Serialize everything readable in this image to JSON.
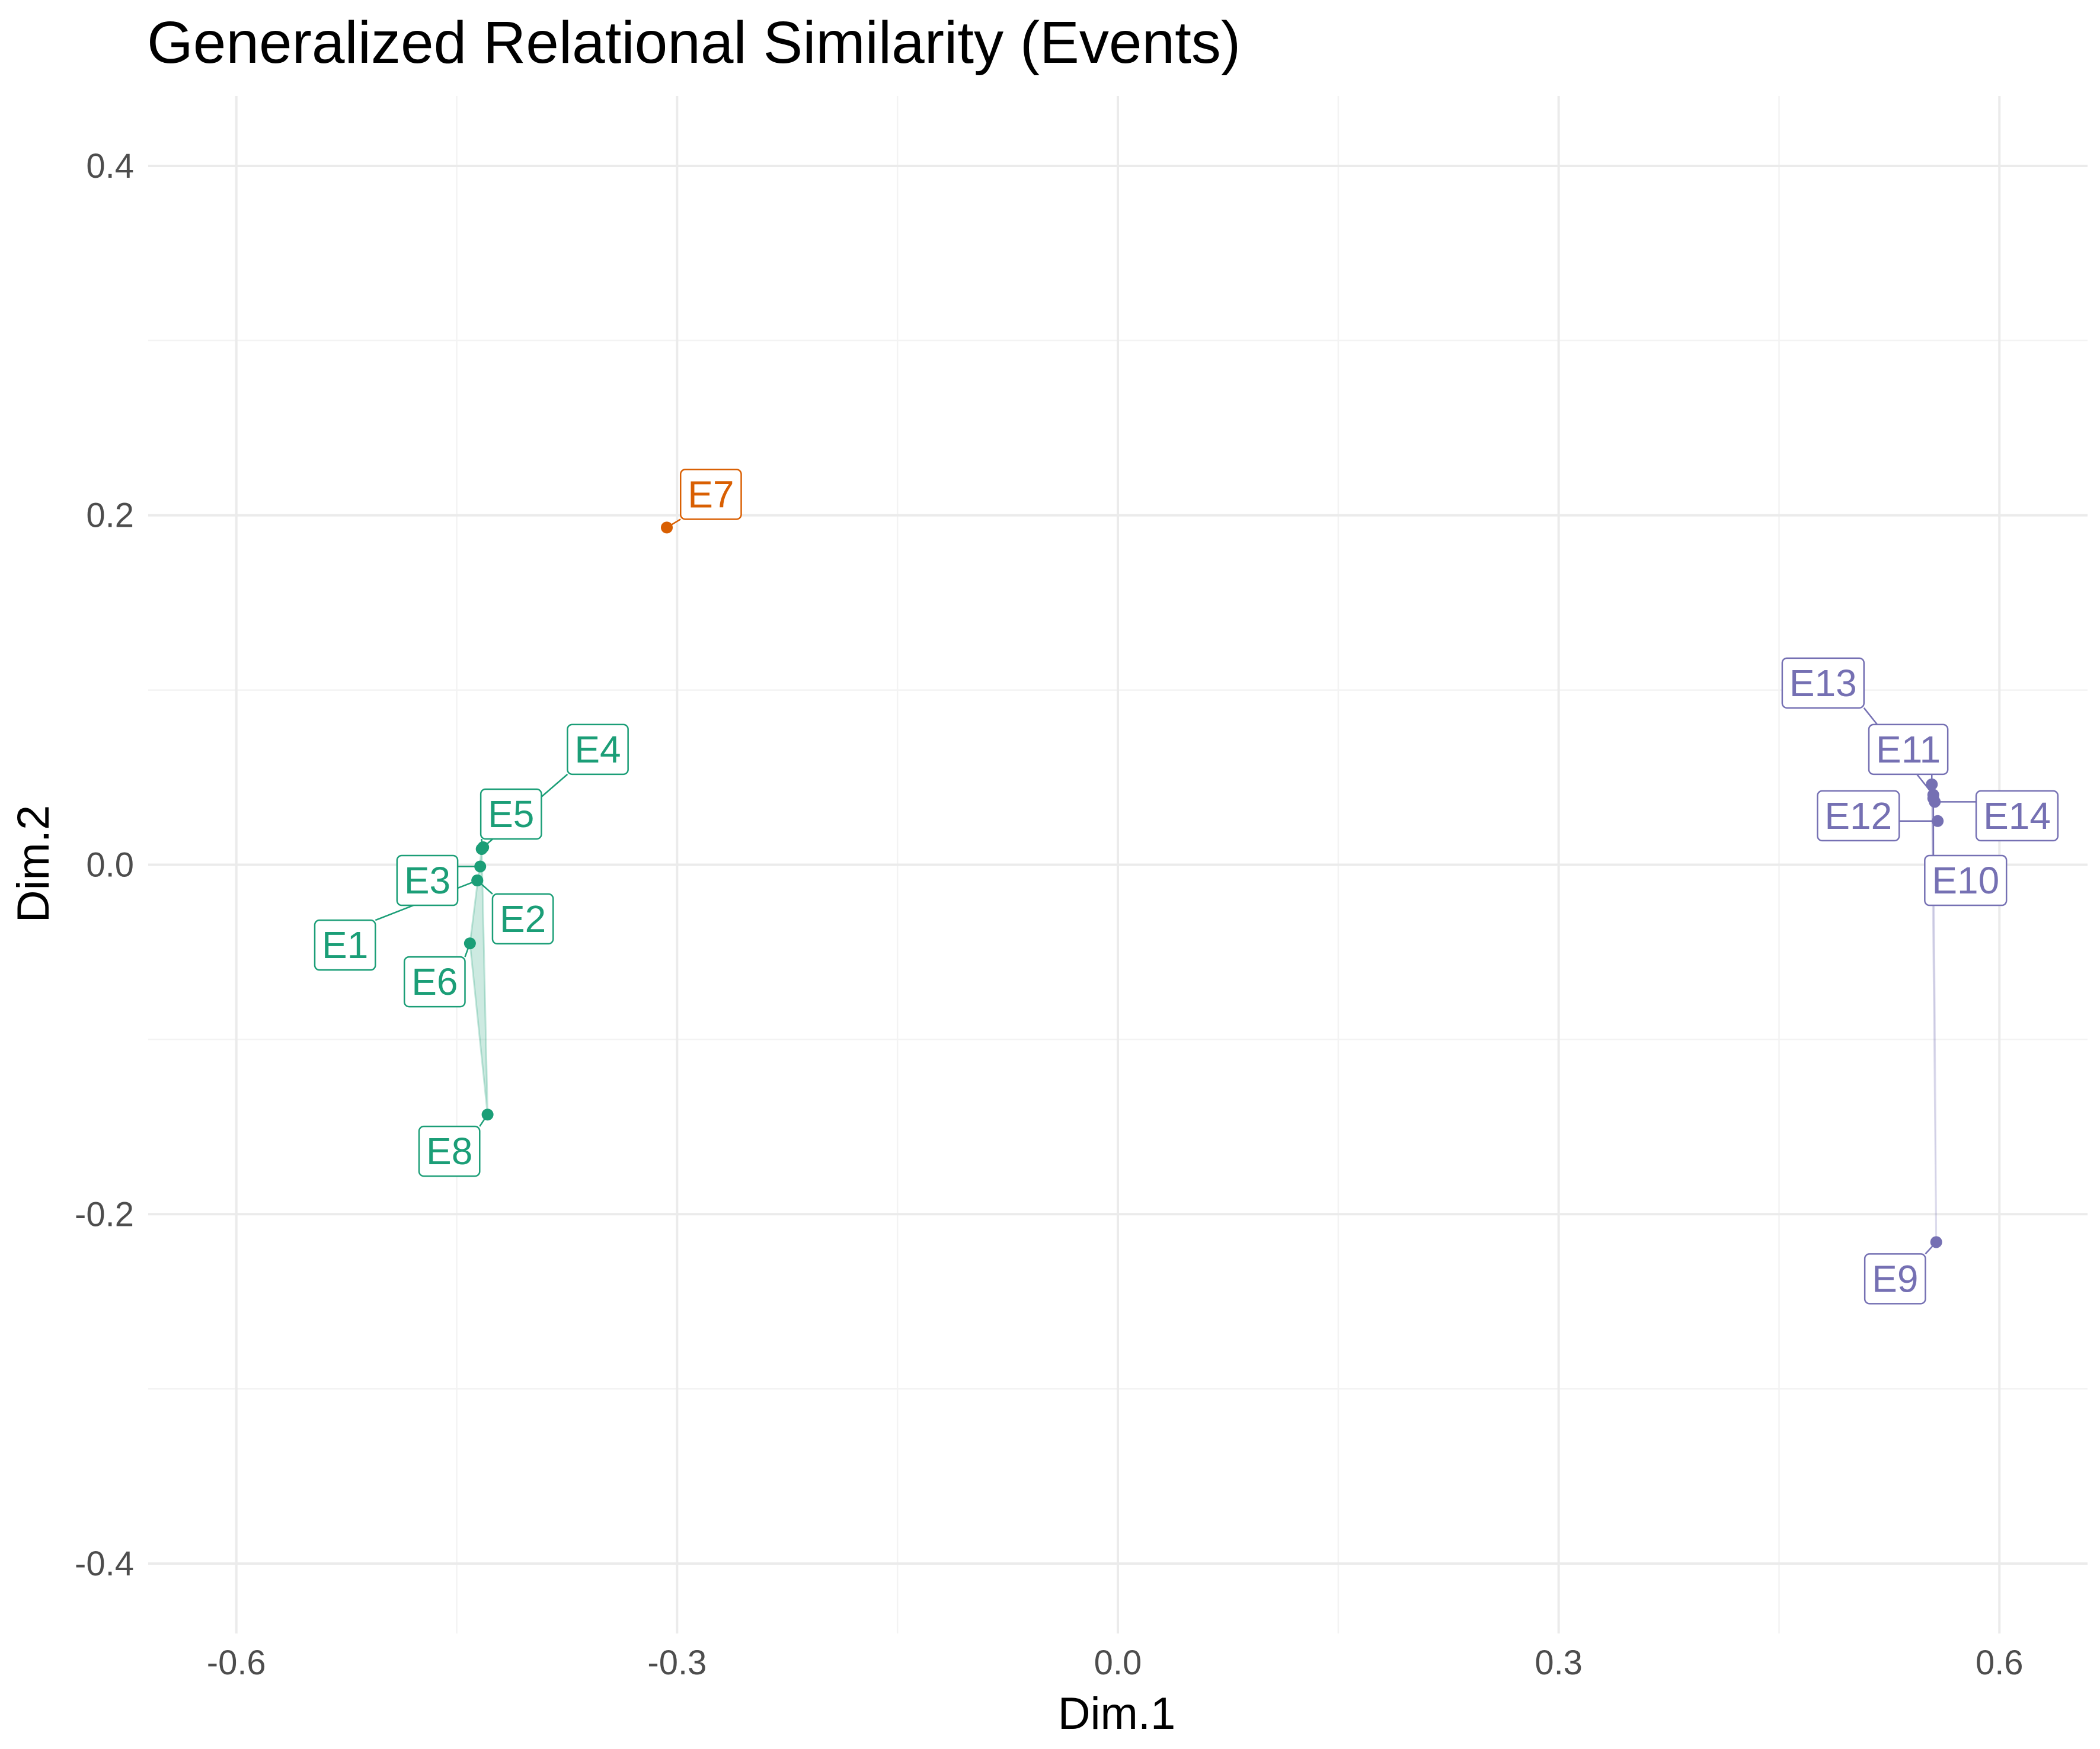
{
  "chart_data": {
    "type": "scatter",
    "title": "Generalized Relational Similarity (Events)",
    "xlabel": "Dim.1",
    "ylabel": "Dim.2",
    "xlim": [
      -0.66,
      0.66
    ],
    "ylim": [
      -0.44,
      0.44
    ],
    "x_ticks": [
      -0.6,
      -0.3,
      0.0,
      0.3,
      0.6
    ],
    "x_tick_labels": [
      "-0.6",
      "-0.3",
      "0.0",
      "0.3",
      "0.6"
    ],
    "y_ticks": [
      -0.4,
      -0.2,
      0.0,
      0.2,
      0.4
    ],
    "y_tick_labels": [
      "-0.4",
      "-0.2",
      "0.0",
      "0.2",
      "0.4"
    ],
    "grid": true,
    "legend": "none",
    "groups": [
      {
        "color": "#1b9e77",
        "hull": [
          "E5",
          "E8",
          "E6"
        ]
      },
      {
        "color": "#d95f02",
        "hull": []
      },
      {
        "color": "#7570b3",
        "hull": [
          "E11",
          "E10",
          "E9"
        ]
      }
    ],
    "points": [
      {
        "label": "E1",
        "x": -0.436,
        "y": -0.009,
        "group": 0,
        "label_x": -0.526,
        "label_y": -0.046
      },
      {
        "label": "E2",
        "x": -0.436,
        "y": -0.009,
        "group": 0,
        "label_x": -0.405,
        "label_y": -0.031
      },
      {
        "label": "E3",
        "x": -0.434,
        "y": -0.001,
        "group": 0,
        "label_x": -0.47,
        "label_y": -0.009
      },
      {
        "label": "E4",
        "x": -0.432,
        "y": 0.01,
        "group": 0,
        "label_x": -0.354,
        "label_y": 0.066
      },
      {
        "label": "E5",
        "x": -0.433,
        "y": 0.009,
        "group": 0,
        "label_x": -0.413,
        "label_y": 0.029
      },
      {
        "label": "E6",
        "x": -0.441,
        "y": -0.045,
        "group": 0,
        "label_x": -0.465,
        "label_y": -0.067
      },
      {
        "label": "E7",
        "x": -0.307,
        "y": 0.193,
        "group": 1,
        "label_x": -0.277,
        "label_y": 0.212
      },
      {
        "label": "E8",
        "x": -0.429,
        "y": -0.143,
        "group": 0,
        "label_x": -0.455,
        "label_y": -0.164
      },
      {
        "label": "E9",
        "x": 0.557,
        "y": -0.216,
        "group": 2,
        "label_x": 0.529,
        "label_y": -0.237
      },
      {
        "label": "E10",
        "x": 0.555,
        "y": 0.038,
        "group": 2,
        "label_x": 0.577,
        "label_y": -0.009
      },
      {
        "label": "E11",
        "x": 0.554,
        "y": 0.046,
        "group": 2,
        "label_x": 0.538,
        "label_y": 0.066
      },
      {
        "label": "E12",
        "x": 0.558,
        "y": 0.025,
        "group": 2,
        "label_x": 0.504,
        "label_y": 0.028
      },
      {
        "label": "E13",
        "x": 0.555,
        "y": 0.04,
        "group": 2,
        "label_x": 0.48,
        "label_y": 0.104
      },
      {
        "label": "E14",
        "x": 0.556,
        "y": 0.036,
        "group": 2,
        "label_x": 0.612,
        "label_y": 0.028
      }
    ]
  }
}
